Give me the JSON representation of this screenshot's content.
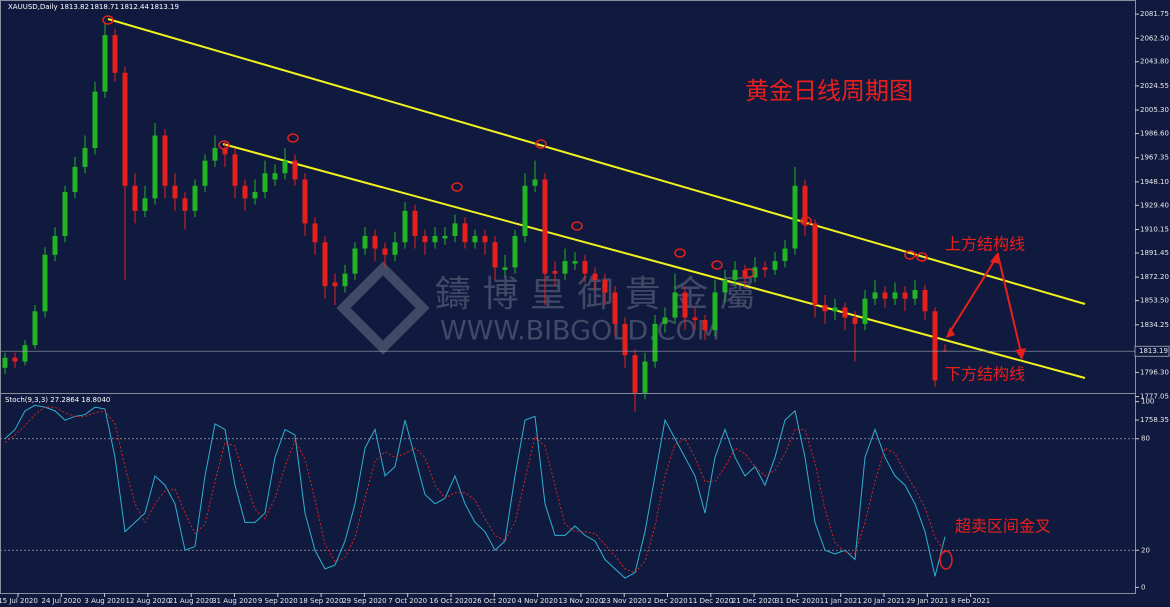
{
  "header": {
    "symbol": "XAUUSD,Daily"
  },
  "chart_data": {
    "type": "candlestick",
    "title": "黄金日线周期图",
    "x_labels": [
      "15 Jul 2020",
      "24 Jul 2020",
      "3 Aug 2020",
      "12 Aug 2020",
      "21 Aug 2020",
      "31 Aug 2020",
      "9 Sep 2020",
      "18 Sep 2020",
      "29 Sep 2020",
      "7 Oct 2020",
      "16 Oct 2020",
      "26 Oct 2020",
      "4 Nov 2020",
      "13 Nov 2020",
      "23 Nov 2020",
      "2 Dec 2020",
      "11 Dec 2020",
      "21 Dec 2020",
      "31 Dec 2020",
      "11 Jan 2021",
      "20 Jan 2021",
      "29 Jan 2021",
      "8 Feb 2021"
    ],
    "ohlc": [
      [
        1800,
        1812,
        1795,
        1808
      ],
      [
        1808,
        1812,
        1800,
        1805
      ],
      [
        1805,
        1822,
        1802,
        1818
      ],
      [
        1818,
        1850,
        1815,
        1845
      ],
      [
        1845,
        1896,
        1840,
        1890
      ],
      [
        1890,
        1912,
        1885,
        1905
      ],
      [
        1905,
        1945,
        1900,
        1940
      ],
      [
        1940,
        1968,
        1935,
        1960
      ],
      [
        1960,
        1985,
        1955,
        1975
      ],
      [
        1975,
        2028,
        1970,
        2020
      ],
      [
        2020,
        2075,
        2015,
        2065
      ],
      [
        2065,
        2070,
        2028,
        2035
      ],
      [
        2035,
        2040,
        1870,
        1945
      ],
      [
        1945,
        1955,
        1915,
        1925
      ],
      [
        1925,
        1945,
        1920,
        1935
      ],
      [
        1935,
        1995,
        1930,
        1985
      ],
      [
        1985,
        1990,
        1935,
        1945
      ],
      [
        1945,
        1955,
        1925,
        1935
      ],
      [
        1935,
        1940,
        1910,
        1925
      ],
      [
        1925,
        1950,
        1920,
        1945
      ],
      [
        1945,
        1970,
        1940,
        1965
      ],
      [
        1965,
        1985,
        1960,
        1975
      ],
      [
        1975,
        1980,
        1960,
        1970
      ],
      [
        1970,
        1975,
        1935,
        1945
      ],
      [
        1945,
        1950,
        1925,
        1935
      ],
      [
        1935,
        1950,
        1930,
        1940
      ],
      [
        1940,
        1965,
        1935,
        1955
      ],
      [
        1950,
        1962,
        1945,
        1955
      ],
      [
        1955,
        1975,
        1950,
        1965
      ],
      [
        1965,
        1970,
        1945,
        1950
      ],
      [
        1950,
        1955,
        1905,
        1915
      ],
      [
        1915,
        1920,
        1890,
        1900
      ],
      [
        1900,
        1905,
        1855,
        1865
      ],
      [
        1868,
        1875,
        1850,
        1865
      ],
      [
        1865,
        1882,
        1860,
        1875
      ],
      [
        1875,
        1900,
        1870,
        1895
      ],
      [
        1895,
        1912,
        1890,
        1905
      ],
      [
        1905,
        1910,
        1885,
        1895
      ],
      [
        1895,
        1900,
        1880,
        1890
      ],
      [
        1890,
        1908,
        1885,
        1900
      ],
      [
        1900,
        1932,
        1895,
        1925
      ],
      [
        1925,
        1930,
        1895,
        1905
      ],
      [
        1905,
        1910,
        1890,
        1900
      ],
      [
        1900,
        1912,
        1895,
        1905
      ],
      [
        1903,
        1912,
        1898,
        1905
      ],
      [
        1905,
        1922,
        1900,
        1915
      ],
      [
        1915,
        1920,
        1895,
        1900
      ],
      [
        1900,
        1910,
        1895,
        1905
      ],
      [
        1905,
        1910,
        1890,
        1900
      ],
      [
        1900,
        1905,
        1870,
        1880
      ],
      [
        1878,
        1890,
        1872,
        1880
      ],
      [
        1880,
        1910,
        1875,
        1905
      ],
      [
        1905,
        1955,
        1900,
        1945
      ],
      [
        1945,
        1965,
        1940,
        1950
      ],
      [
        1950,
        1955,
        1850,
        1875
      ],
      [
        1877,
        1885,
        1865,
        1875
      ],
      [
        1875,
        1895,
        1870,
        1885
      ],
      [
        1883,
        1892,
        1878,
        1885
      ],
      [
        1885,
        1890,
        1868,
        1875
      ],
      [
        1875,
        1880,
        1862,
        1870
      ],
      [
        1870,
        1875,
        1850,
        1860
      ],
      [
        1860,
        1865,
        1825,
        1835
      ],
      [
        1835,
        1840,
        1800,
        1810
      ],
      [
        1810,
        1815,
        1765,
        1780
      ],
      [
        1780,
        1812,
        1775,
        1805
      ],
      [
        1805,
        1842,
        1800,
        1835
      ],
      [
        1835,
        1848,
        1828,
        1840
      ],
      [
        1840,
        1875,
        1835,
        1860
      ],
      [
        1860,
        1865,
        1830,
        1840
      ],
      [
        1840,
        1848,
        1830,
        1838
      ],
      [
        1838,
        1842,
        1822,
        1830
      ],
      [
        1830,
        1870,
        1825,
        1860
      ],
      [
        1860,
        1878,
        1852,
        1870
      ],
      [
        1870,
        1885,
        1865,
        1878
      ],
      [
        1878,
        1882,
        1865,
        1872
      ],
      [
        1872,
        1888,
        1868,
        1880
      ],
      [
        1880,
        1885,
        1872,
        1878
      ],
      [
        1878,
        1892,
        1874,
        1885
      ],
      [
        1885,
        1902,
        1880,
        1895
      ],
      [
        1895,
        1960,
        1890,
        1945
      ],
      [
        1945,
        1950,
        1905,
        1915
      ],
      [
        1915,
        1918,
        1840,
        1850
      ],
      [
        1850,
        1858,
        1835,
        1845
      ],
      [
        1845,
        1855,
        1838,
        1848
      ],
      [
        1848,
        1852,
        1830,
        1840
      ],
      [
        1840,
        1845,
        1805,
        1835
      ],
      [
        1835,
        1862,
        1830,
        1855
      ],
      [
        1855,
        1870,
        1850,
        1860
      ],
      [
        1860,
        1865,
        1848,
        1855
      ],
      [
        1855,
        1868,
        1850,
        1860
      ],
      [
        1860,
        1865,
        1845,
        1855
      ],
      [
        1855,
        1870,
        1850,
        1862
      ],
      [
        1862,
        1866,
        1838,
        1845
      ],
      [
        1845,
        1848,
        1785,
        1790
      ],
      [
        1813.82,
        1818.71,
        1812.44,
        1813.19
      ]
    ],
    "up_color": "#22b422",
    "down_color": "#e8201c",
    "ylim": [
      1756,
      2089
    ],
    "yticks": [
      {
        "value": 2081.75,
        "label": "2081.75"
      },
      {
        "value": 2062.5,
        "label": "2062.50"
      },
      {
        "value": 2043.8,
        "label": "2043.80"
      },
      {
        "value": 2024.55,
        "label": "2024.55"
      },
      {
        "value": 2005.3,
        "label": "2005.30"
      },
      {
        "value": 1986.6,
        "label": "1986.60"
      },
      {
        "value": 1967.35,
        "label": "1967.35"
      },
      {
        "value": 1948.1,
        "label": "1948.10"
      },
      {
        "value": 1929.4,
        "label": "1929.40"
      },
      {
        "value": 1910.15,
        "label": "1910.15"
      },
      {
        "value": 1891.45,
        "label": "1891.45"
      },
      {
        "value": 1872.2,
        "label": "1872.20"
      },
      {
        "value": 1853.5,
        "label": "1853.50"
      },
      {
        "value": 1834.25,
        "label": "1834.25"
      },
      {
        "value": 1796.3,
        "label": "1796.30"
      },
      {
        "value": 1777.05,
        "label": "1777.05"
      },
      {
        "value": 1758.35,
        "label": "1758.35"
      }
    ],
    "annotations": [
      "上方结构线",
      "下方结构线",
      "超卖区间金叉"
    ],
    "watermark": [
      "鑄 博 皇 御 貴 金 屬",
      "WWW.BIBGOLD.COM"
    ],
    "indicator": {
      "type": "line",
      "title": "Stoch(9,3,3) 27.2864 18.8040",
      "ylim": [
        -3,
        103
      ],
      "yticks": [
        100,
        80,
        20,
        0
      ],
      "levels": [
        80,
        20
      ],
      "series": [
        {
          "color": "#2fb0d0",
          "values": [
            80,
            85,
            95,
            98,
            97,
            95,
            90,
            92,
            93,
            97,
            96,
            70,
            30,
            35,
            40,
            60,
            55,
            45,
            20,
            22,
            60,
            88,
            85,
            55,
            35,
            35,
            40,
            70,
            85,
            82,
            40,
            20,
            10,
            12,
            25,
            45,
            75,
            85,
            60,
            65,
            90,
            70,
            50,
            45,
            48,
            60,
            45,
            35,
            30,
            20,
            25,
            60,
            90,
            92,
            45,
            28,
            28,
            33,
            28,
            25,
            15,
            10,
            5,
            8,
            30,
            60,
            90,
            80,
            70,
            60,
            40,
            70,
            85,
            70,
            60,
            65,
            55,
            70,
            90,
            95,
            70,
            35,
            20,
            18,
            20,
            15,
            70,
            85,
            70,
            60,
            55,
            45,
            30,
            6,
            27.2864
          ]
        },
        {
          "color": "#d42424",
          "dash": true,
          "values": [
            78,
            82,
            87,
            93,
            97,
            97,
            94,
            92,
            92,
            94,
            95,
            88,
            65,
            45,
            35,
            45,
            52,
            53,
            40,
            29,
            34,
            57,
            78,
            76,
            58,
            42,
            37,
            48,
            65,
            79,
            69,
            47,
            23,
            14,
            16,
            27,
            48,
            68,
            73,
            70,
            72,
            75,
            70,
            55,
            48,
            51,
            51,
            47,
            37,
            28,
            25,
            35,
            58,
            81,
            76,
            55,
            34,
            30,
            30,
            29,
            23,
            17,
            10,
            8,
            14,
            33,
            60,
            77,
            80,
            70,
            57,
            57,
            65,
            75,
            72,
            65,
            60,
            63,
            72,
            85,
            85,
            67,
            42,
            24,
            19,
            18,
            35,
            57,
            75,
            72,
            62,
            53,
            43,
            27,
            18.804
          ]
        }
      ]
    }
  }
}
